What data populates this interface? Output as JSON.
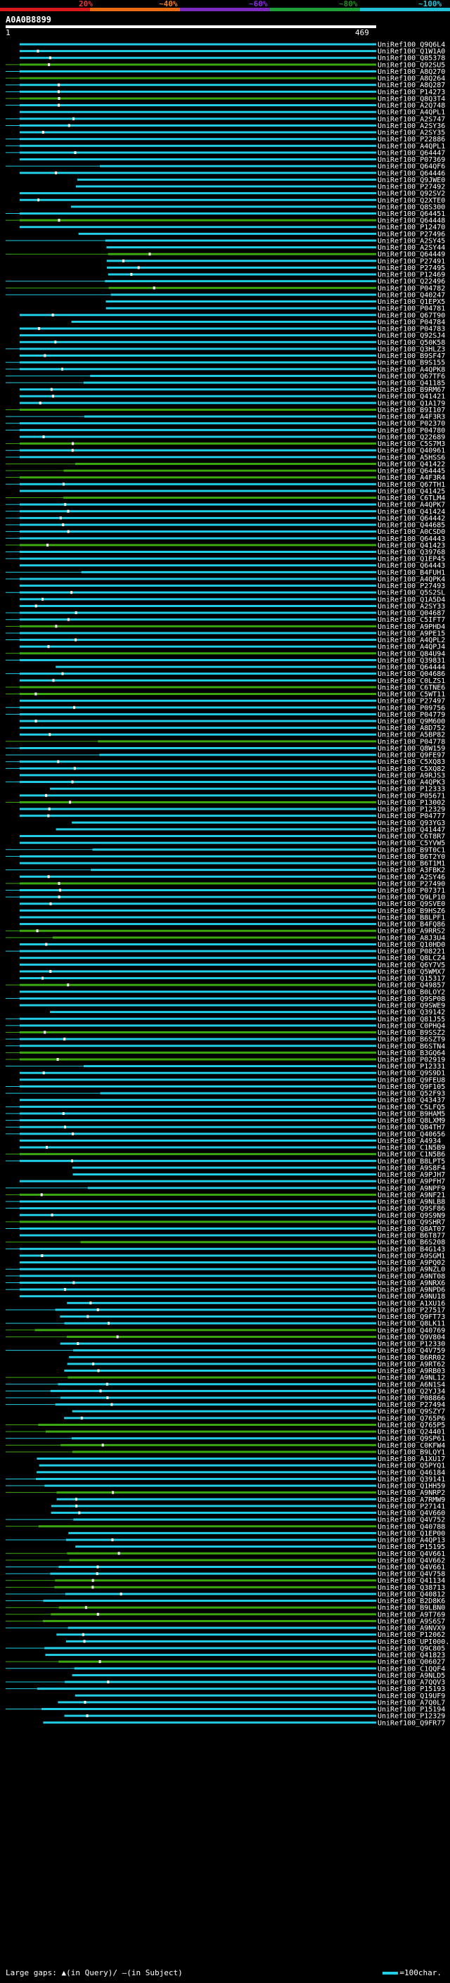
{
  "legend": {
    "ticks": [
      {
        "label": "20%",
        "color": "#e5383b"
      },
      {
        "label": "~40%",
        "color": "#f07f1e"
      },
      {
        "label": "~60%",
        "color": "#8a2be2"
      },
      {
        "label": "~80%",
        "color": "#228b22"
      },
      {
        "label": "~100%",
        "color": "#22c4d8"
      }
    ],
    "colors": {
      "segment1": "#d7191c",
      "segment2": "#e86a13",
      "segment3": "#7b2cbf",
      "segment4": "#1f9e3a",
      "segment5": "#22bfd6"
    }
  },
  "query": {
    "id": "A0A0B8899",
    "scale_start": "1",
    "scale_end": "469"
  },
  "hit_color_high": "#22cde6",
  "hit_color_mid": "#3aa80e",
  "hits": [
    "UniRef100_Q9Q6L4",
    "UniRef100_Q1W1A0",
    "UniRef100_Q85378",
    "UniRef100_Q92SU5",
    "UniRef100_A8Q270",
    "UniRef100_A8Q264",
    "UniRef100_A8Q287",
    "UniRef100_P14273",
    "UniRef100_Q8Q3T4",
    "UniRef100_A2Q748",
    "UniRef100_A4QPL1",
    "UniRef100_A2S747",
    "UniRef100_A2SY36",
    "UniRef100_A2SY35",
    "UniRef100_P22886",
    "UniRef100_A4QPL1",
    "UniRef100_Q64447",
    "UniRef100_P07369",
    "UniRef100_Q64QF6",
    "UniRef100_Q64446",
    "UniRef100_Q9JWE0",
    "UniRef100_P27492",
    "UniRef100_Q92SV2",
    "UniRef100_Q2XTE0",
    "UniRef100_Q8S300",
    "UniRef100_Q64451",
    "UniRef100_Q64448",
    "UniRef100_P12470",
    "UniRef100_P27496",
    "UniRef100_A2SY45",
    "UniRef100_A2SY44",
    "UniRef100_Q64449",
    "UniRef100_P27491",
    "UniRef100_P27495",
    "UniRef100_P12469",
    "UniRef100_Q22496",
    "UniRef100_P04782",
    "UniRef100_Q40247",
    "UniRef100_Q1EPX5",
    "UniRef100_P04781",
    "UniRef100_Q67T90",
    "UniRef100_P04784",
    "UniRef100_P04783",
    "UniRef100_Q92SJ4",
    "UniRef100_Q50K58",
    "UniRef100_Q3HLZ3",
    "UniRef100_B9SF47",
    "UniRef100_B9S155",
    "UniRef100_A4QPK8",
    "UniRef100_Q67TF6",
    "UniRef100_Q41185",
    "UniRef100_B9RM67",
    "UniRef100_Q41421",
    "UniRef100_Q1A179",
    "UniRef100_B9I107",
    "UniRef100_A4F3R3",
    "UniRef100_P02370",
    "UniRef100_P04780",
    "UniRef100_Q22689",
    "UniRef100_C5S7M3",
    "UniRef100_Q40961",
    "UniRef100_A5HSS6",
    "UniRef100_Q41422",
    "UniRef100_Q64445",
    "UniRef100_A4F3R4",
    "UniRef100_Q67TH1",
    "UniRef100_Q41425",
    "UniRef100_C6TLM4",
    "UniRef100_A4QPK7",
    "UniRef100_Q41424",
    "UniRef100_Q64442",
    "UniRef100_Q44685",
    "UniRef100_A0CSD0",
    "UniRef100_Q64443",
    "UniRef100_Q41423",
    "UniRef100_Q39768",
    "UniRef100_Q1EP45",
    "UniRef100_Q64443",
    "UniRef100_B4FUH1",
    "UniRef100_A4QPK4",
    "UniRef100_P27493",
    "UniRef100_Q5S2SL",
    "UniRef100_Q1A5D4",
    "UniRef100_A2SY33",
    "UniRef100_Q04687",
    "UniRef100_C5IFT7",
    "UniRef100_A9PHD4",
    "UniRef100_A9PE15",
    "UniRef100_A4QPL2",
    "UniRef100_A4QPJ4",
    "UniRef100_Q84U94",
    "UniRef100_Q39831",
    "UniRef100_Q64444",
    "UniRef100_Q04686",
    "UniRef100_C0LZS1",
    "UniRef100_C6TNE6",
    "UniRef100_C5WT11",
    "UniRef100_P27497",
    "UniRef100_P09756",
    "UniRef100_P04779",
    "UniRef100_Q9M600",
    "UniRef100_A8D752",
    "UniRef100_A5BP82",
    "UniRef100_P04778",
    "UniRef100_Q8W159",
    "UniRef100_Q9FE97",
    "UniRef100_C5XQ83",
    "UniRef100_C5XQ82",
    "UniRef100_A9RJS3",
    "UniRef100_A4QPK3",
    "UniRef100_P12333",
    "UniRef100_P05671",
    "UniRef100_P13002",
    "UniRef100_P12329",
    "UniRef100_P04777",
    "UniRef100_Q93YG3",
    "UniRef100_Q41447",
    "UniRef100_C6T8R7",
    "UniRef100_C5YVW5",
    "UniRef100_B9T0C1",
    "UniRef100_B6T2Y0",
    "UniRef100_B6T1M1",
    "UniRef100_A3FBK2",
    "UniRef100_A2SY46",
    "UniRef100_P27490",
    "UniRef100_P07371",
    "UniRef100_Q9LP10",
    "UniRef100_Q9SVE0",
    "UniRef100_B9HSZ6",
    "UniRef100_B8LPF1",
    "UniRef100_B4FQ86",
    "UniRef100_A9RRS2",
    "UniRef100_A8J3U4",
    "UniRef100_Q10HD0",
    "UniRef100_P08221",
    "UniRef100_Q8LCZ4",
    "UniRef100_Q6Y7V5",
    "UniRef100_Q5WMX7",
    "UniRef100_Q15317",
    "UniRef100_Q49857",
    "UniRef100_B0LOY2",
    "UniRef100_Q9SP08",
    "UniRef100_Q9SWE9",
    "UniRef100_Q39142",
    "UniRef100_Q81J55",
    "UniRef100_C0PHQ4",
    "UniRef100_B9SSZ2",
    "UniRef100_B6SZT9",
    "UniRef100_B6STN4",
    "UniRef100_B3GQ64",
    "UniRef100_P02919",
    "UniRef100_P12331",
    "UniRef100_Q9S9D1",
    "UniRef100_Q9FEU8",
    "UniRef100_Q9F105",
    "UniRef100_Q52F93",
    "UniRef100_Q43437",
    "UniRef100_C5LFQ5",
    "UniRef100_B9HAM5",
    "UniRef100_Q8LXM9",
    "UniRef100_Q84TH7",
    "UniRef100_Q40656",
    "UniRef100_A4934",
    "UniRef100_C1N5B9",
    "UniRef100_C1N5B6",
    "UniRef100_B8LPT5",
    "UniRef100_A9S8F4",
    "UniRef100_A9PJH7",
    "UniRef100_A9PFH7",
    "UniRef100_A9NPF9",
    "UniRef100_A9NF21",
    "UniRef100_A9NLB8",
    "UniRef100_Q9SF86",
    "UniRef100_Q9S9N9",
    "UniRef100_Q9SHR7",
    "UniRef100_Q8AT07",
    "UniRef100_B6T877",
    "UniRef100_B6S208",
    "UniRef100_B4G143",
    "UniRef100_A9SGM1",
    "UniRef100_A9PQ02",
    "UniRef100_A9NZL0",
    "UniRef100_A9NT08",
    "UniRef100_A9NRX6",
    "UniRef100_A9NPD6",
    "UniRef100_A9NU18",
    "UniRef100_A1XU16",
    "UniRef100_P27517",
    "UniRef100_Q9FT73",
    "UniRef100_Q8LK11",
    "UniRef100_Q40769",
    "UniRef100_Q9V804",
    "UniRef100_P12330",
    "UniRef100_Q4V759",
    "UniRef100_B6RR02",
    "UniRef100_A9RT62",
    "UniRef100_A9RB03",
    "UniRef100_A9NL12",
    "UniRef100_A6N1S4",
    "UniRef100_Q2YJ34",
    "UniRef100_P08866",
    "UniRef100_P27494",
    "UniRef100_Q9SZY7",
    "UniRef100_Q765P6",
    "UniRef100_Q765P5",
    "UniRef100_Q24401",
    "UniRef100_Q9SP61",
    "UniRef100_C0KFW4",
    "UniRef100_B9LQY1",
    "UniRef100_A1XU17",
    "UniRef100_Q5PYQ1",
    "UniRef100_Q46184",
    "UniRef100_Q39141",
    "UniRef100_Q1HH59",
    "UniRef100_A9NRP2",
    "UniRef100_A7RMW9",
    "UniRef100_P27141",
    "UniRef100_Q4V660",
    "UniRef100_Q4V752",
    "UniRef100_Q40788",
    "UniRef100_Q1EP00",
    "UniRef100_A4QP13",
    "UniRef100_P15195",
    "UniRef100_Q4V661",
    "UniRef100_Q4V662",
    "UniRef100_Q4V661",
    "UniRef100_Q4V758",
    "UniRef100_Q41134",
    "UniRef100_Q38713",
    "UniRef100_Q40812",
    "UniRef100_B2D8K6",
    "UniRef100_B9LBN0",
    "UniRef100_A9T769",
    "UniRef100_A9S6S7",
    "UniRef100_A9NVX9",
    "UniRef100_P12062",
    "UniRef100_UPI000...",
    "UniRef100_Q9C805",
    "UniRef100_Q41823",
    "UniRef100_Q06027",
    "UniRef100_C1QQF4",
    "UniRef100_A9NLD5",
    "UniRef100_A7QQV3",
    "UniRef100_P15193",
    "UniRef100_Q19UF9",
    "UniRef100_A7Q0L7",
    "UniRef100_P15194",
    "UniRef100_P12329",
    "UniRef100_Q9FR77"
  ],
  "footer": {
    "text_left": "Large gaps:",
    "query_marker": "(in Query)/",
    "subject_marker": "(in Subject)",
    "scale_note": "=100char."
  }
}
